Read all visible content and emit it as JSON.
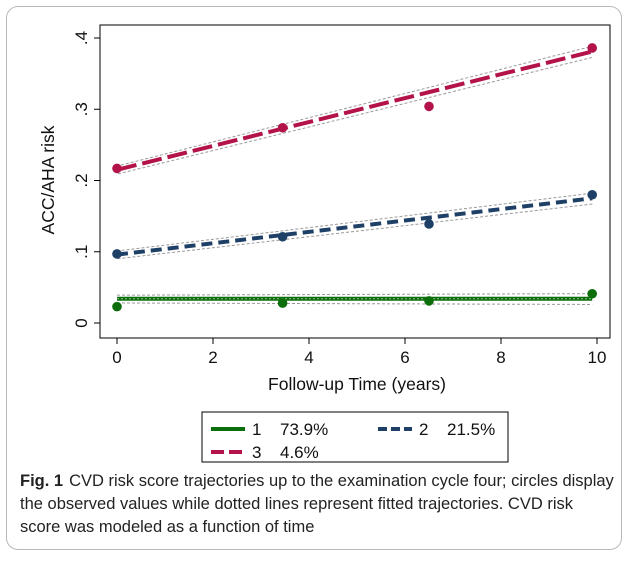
{
  "chart_data": {
    "type": "line",
    "xlabel": "Follow-up Time (years)",
    "ylabel": "ACC/AHA risk",
    "xlim": [
      0,
      10
    ],
    "ylim": [
      0,
      0.4
    ],
    "xticks": [
      "0",
      "2",
      "4",
      "6",
      "8",
      "10"
    ],
    "yticks": [
      "0",
      ".1",
      ".2",
      ".3",
      ".4"
    ],
    "grid": false,
    "legend_position": "bottom",
    "series": [
      {
        "name": "1",
        "share": "73.9%",
        "color": "#0b6e0b",
        "style": "solid",
        "observed": [
          {
            "x": 0,
            "y": 0.023
          },
          {
            "x": 3.45,
            "y": 0.028
          },
          {
            "x": 6.5,
            "y": 0.031
          },
          {
            "x": 9.9,
            "y": 0.041
          }
        ],
        "fitted": [
          {
            "x": 0,
            "y": 0.034
          },
          {
            "x": 9.9,
            "y": 0.034
          }
        ]
      },
      {
        "name": "2",
        "share": "21.5%",
        "color": "#1e3f66",
        "style": "dash",
        "observed": [
          {
            "x": 0,
            "y": 0.097
          },
          {
            "x": 3.45,
            "y": 0.121
          },
          {
            "x": 6.5,
            "y": 0.139
          },
          {
            "x": 9.9,
            "y": 0.18
          }
        ],
        "fitted": [
          {
            "x": 0,
            "y": 0.096
          },
          {
            "x": 9.9,
            "y": 0.175
          }
        ]
      },
      {
        "name": "3",
        "share": "4.6%",
        "color": "#b3134a",
        "style": "longdash",
        "observed": [
          {
            "x": 0,
            "y": 0.217
          },
          {
            "x": 3.45,
            "y": 0.274
          },
          {
            "x": 6.5,
            "y": 0.304
          },
          {
            "x": 9.9,
            "y": 0.386
          }
        ],
        "fitted": [
          {
            "x": 0,
            "y": 0.215
          },
          {
            "x": 9.9,
            "y": 0.381
          }
        ]
      }
    ]
  },
  "caption": {
    "label": "Fig. 1",
    "text": "CVD risk score trajectories up to the examination cycle four; circles display the observed values while dotted lines represent fitted trajectories. CVD risk score was modeled as a function of time"
  }
}
